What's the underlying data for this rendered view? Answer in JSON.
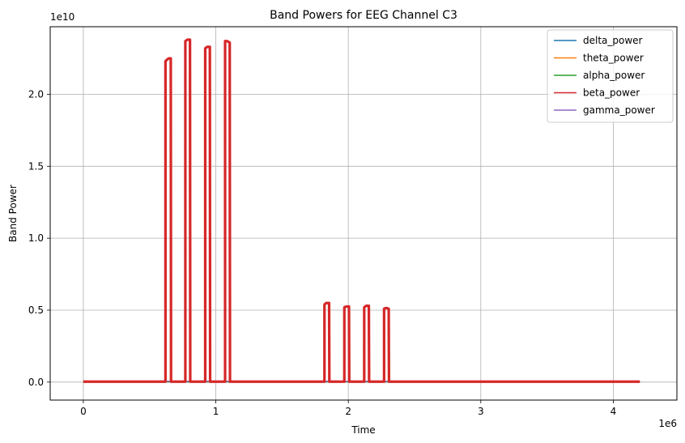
{
  "chart_data": {
    "type": "line",
    "title": "Band Powers for EEG Channel C3",
    "xlabel": "Time",
    "ylabel": "Band Power",
    "x_offset_label": "1e6",
    "y_offset_label": "1e10",
    "xlim": [
      -250000,
      4480000
    ],
    "ylim": [
      -1250000000.0,
      24700000000.0
    ],
    "xticks": [
      0,
      1000000,
      2000000,
      3000000,
      4000000
    ],
    "xtick_labels": [
      "0",
      "1",
      "2",
      "3",
      "4"
    ],
    "yticks": [
      0,
      5000000000.0,
      10000000000.0,
      15000000000.0,
      20000000000.0
    ],
    "ytick_labels": [
      "0.0",
      "0.5",
      "1.0",
      "1.5",
      "2.0"
    ],
    "grid": true,
    "legend_position": "top-right",
    "series": [
      {
        "name": "delta_power",
        "color": "#1f77b4",
        "points": [
          [
            0,
            20000000.0
          ],
          [
            4200000,
            20000000.0
          ]
        ]
      },
      {
        "name": "theta_power",
        "color": "#ff7f0e",
        "points": [
          [
            0,
            25000000.0
          ],
          [
            4200000,
            25000000.0
          ]
        ]
      },
      {
        "name": "alpha_power",
        "color": "#2ca02c",
        "points": [
          [
            0,
            22000000.0
          ],
          [
            4200000,
            22000000.0
          ]
        ]
      },
      {
        "name": "beta_power",
        "color": "#d62728",
        "points": [
          [
            0,
            30000000.0
          ],
          [
            620000,
            30000000.0
          ],
          [
            620000,
            22300000000.0
          ],
          [
            630000,
            22400000000.0
          ],
          [
            645000,
            22500000000.0
          ],
          [
            660000,
            22500000000.0
          ],
          [
            662000,
            30000000.0
          ],
          [
            770000,
            30000000.0
          ],
          [
            770000,
            23700000000.0
          ],
          [
            785000,
            23800000000.0
          ],
          [
            805000,
            23800000000.0
          ],
          [
            807000,
            30000000.0
          ],
          [
            920000,
            30000000.0
          ],
          [
            920000,
            23200000000.0
          ],
          [
            935000,
            23300000000.0
          ],
          [
            955000,
            23300000000.0
          ],
          [
            957000,
            30000000.0
          ],
          [
            1070000,
            30000000.0
          ],
          [
            1070000,
            23700000000.0
          ],
          [
            1085000,
            23700000000.0
          ],
          [
            1105000,
            23600000000.0
          ],
          [
            1107000,
            30000000.0
          ],
          [
            1820000,
            30000000.0
          ],
          [
            1820000,
            5400000000.0
          ],
          [
            1835000,
            5500000000.0
          ],
          [
            1855000,
            5500000000.0
          ],
          [
            1857000,
            30000000.0
          ],
          [
            1970000,
            30000000.0
          ],
          [
            1970000,
            5200000000.0
          ],
          [
            1985000,
            5250000000.0
          ],
          [
            2005000,
            5250000000.0
          ],
          [
            2007000,
            30000000.0
          ],
          [
            2120000,
            30000000.0
          ],
          [
            2120000,
            5200000000.0
          ],
          [
            2135000,
            5300000000.0
          ],
          [
            2155000,
            5300000000.0
          ],
          [
            2157000,
            30000000.0
          ],
          [
            2270000,
            30000000.0
          ],
          [
            2270000,
            5100000000.0
          ],
          [
            2285000,
            5150000000.0
          ],
          [
            2305000,
            5100000000.0
          ],
          [
            2307000,
            30000000.0
          ],
          [
            4200000,
            30000000.0
          ]
        ]
      },
      {
        "name": "gamma_power",
        "color": "#9467bd",
        "points": [
          [
            0,
            60000000.0
          ],
          [
            4200000,
            60000000.0
          ]
        ]
      }
    ]
  }
}
